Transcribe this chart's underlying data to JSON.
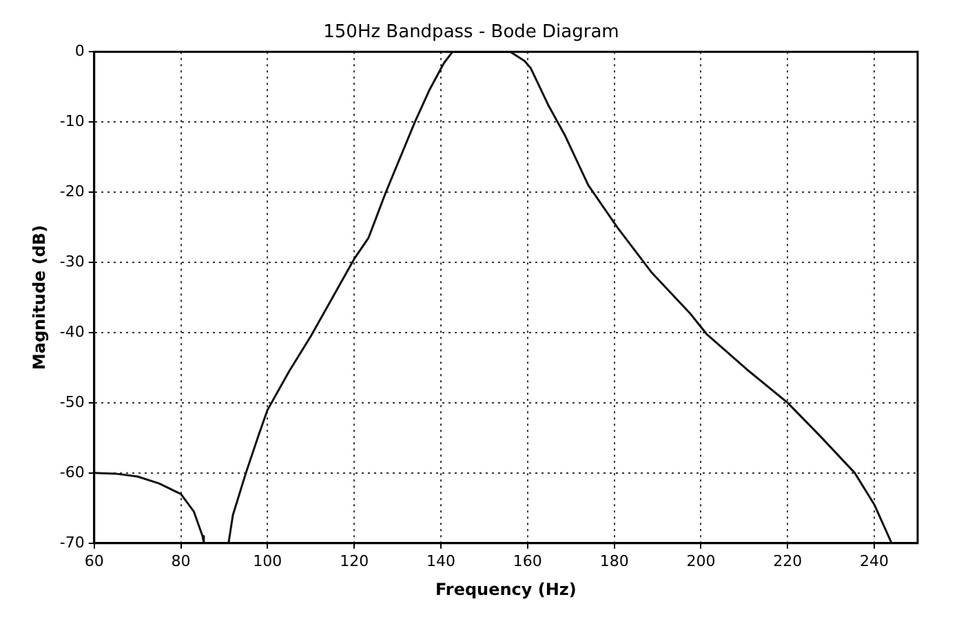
{
  "chart_data": {
    "type": "line",
    "title": "150Hz Bandpass - Bode Diagram",
    "xlabel": "Frequency (Hz)",
    "ylabel": "Magnitude (dB)",
    "xlim": [
      60,
      250
    ],
    "xticks": [
      60,
      80,
      100,
      120,
      140,
      160,
      180,
      200,
      220,
      240
    ],
    "ylim": [
      -70,
      0
    ],
    "yticks": [
      -70,
      -60,
      -50,
      -40,
      -30,
      -20,
      -10,
      0
    ],
    "grid": true,
    "legend": false,
    "marker": "none",
    "line_style": "solid",
    "series": [
      {
        "color": "#111111",
        "x": [
          60,
          65,
          70,
          75,
          80,
          83,
          85,
          85.3,
          88,
          91,
          92,
          95,
          98,
          100,
          105,
          110,
          115,
          120,
          123.3,
          127.3,
          134,
          137.3,
          140.7,
          142.7,
          150,
          156,
          159.3,
          160.7,
          164.7,
          168.7,
          174,
          180.7,
          188.7,
          197.4,
          201.3,
          210.5,
          220,
          227.6,
          235.5,
          240,
          244
        ],
        "values": [
          -60,
          -60.1,
          -60.5,
          -61.5,
          -63,
          -65.5,
          -69,
          -70,
          null,
          -70,
          -66,
          -60,
          -54.5,
          -51,
          -45.5,
          -40.5,
          -35,
          -29.5,
          -26.5,
          -20,
          -10,
          -5.5,
          -1.6,
          0,
          0,
          0,
          -1.3,
          -2.3,
          -7.5,
          -12,
          -19,
          -25,
          -31.5,
          -37.2,
          -40.2,
          -45.2,
          -50,
          -54.8,
          -60,
          -64.5,
          -70
        ]
      }
    ]
  }
}
